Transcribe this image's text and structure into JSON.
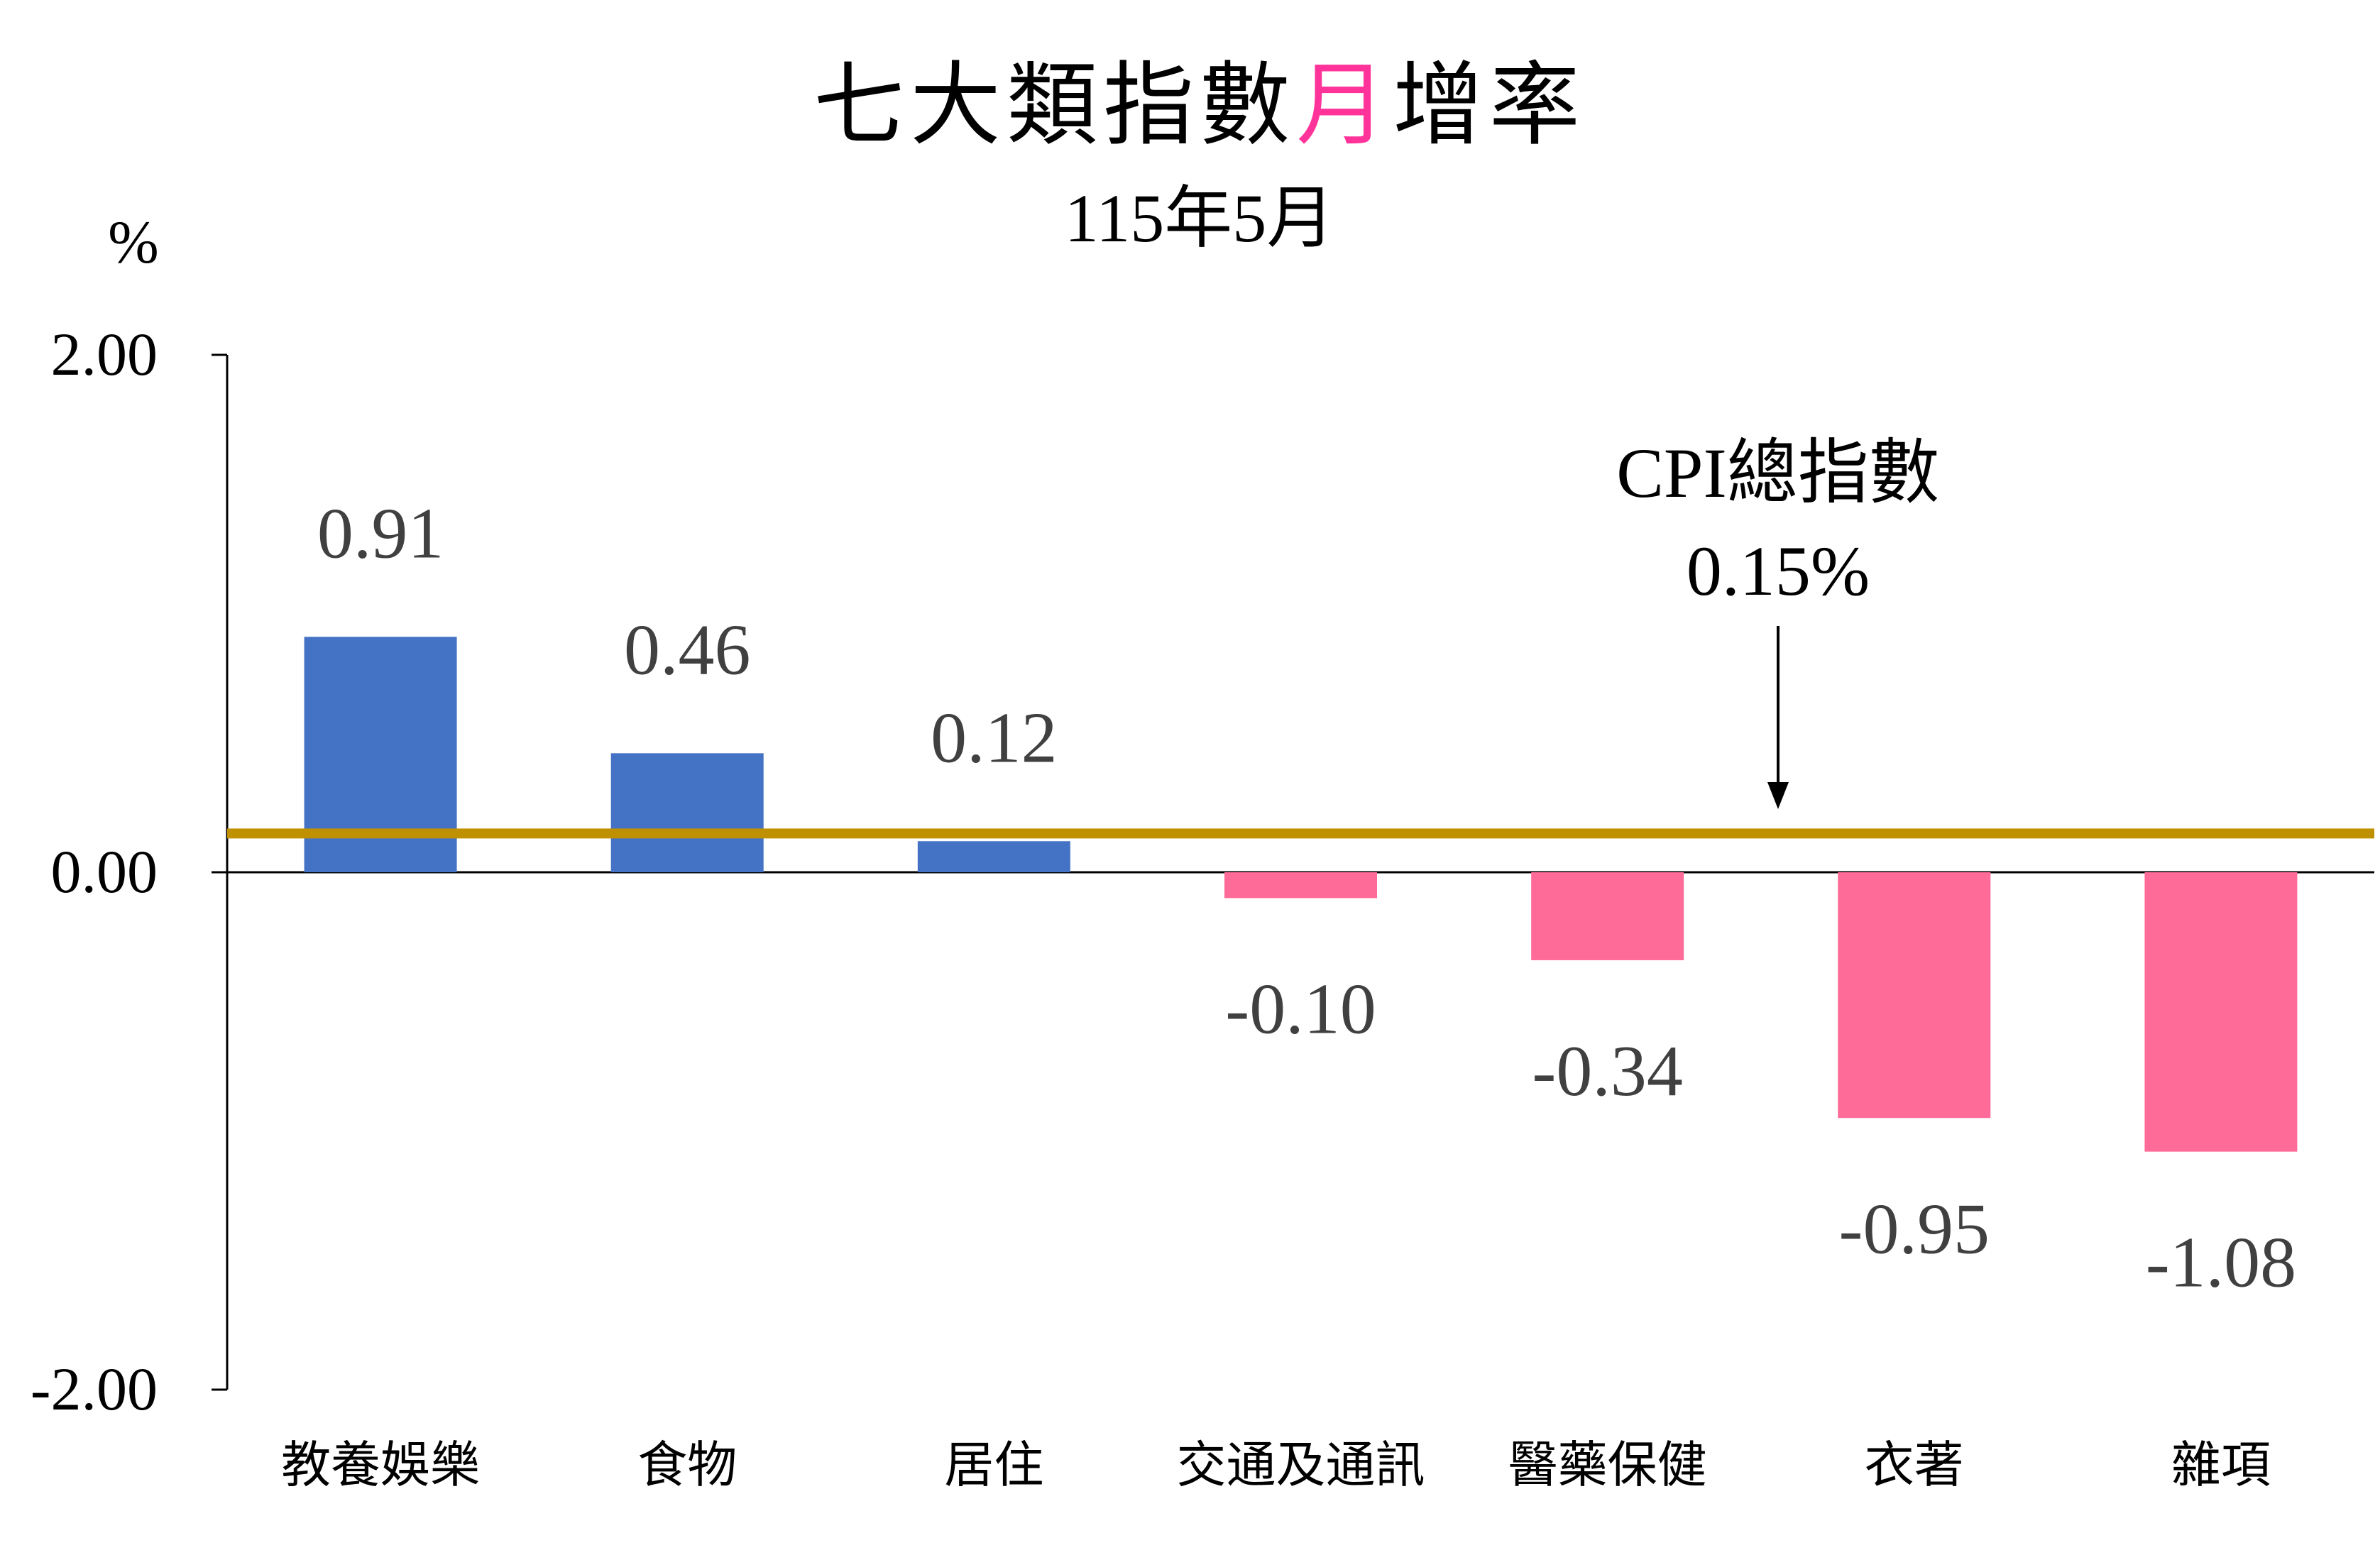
{
  "chart_data": {
    "type": "bar",
    "title": {
      "before": "七大類指數",
      "highlight": "月",
      "after": "增率",
      "highlight_color": "#ff3399"
    },
    "subtitle": "115年5月",
    "unit_label": "%",
    "categories": [
      "教養娛樂",
      "食物",
      "居住",
      "交通及通訊",
      "醫藥保健",
      "衣著",
      "雜項"
    ],
    "values": [
      0.91,
      0.46,
      0.12,
      -0.1,
      -0.34,
      -0.95,
      -1.08
    ],
    "value_labels": [
      "0.91",
      "0.46",
      "0.12",
      "-0.10",
      "-0.34",
      "-0.95",
      "-1.08"
    ],
    "ylim": [
      -2.0,
      2.0
    ],
    "yticks": [
      {
        "value": 2.0,
        "label": "2.00"
      },
      {
        "value": 0.0,
        "label": "0.00"
      },
      {
        "value": -2.0,
        "label": "-2.00"
      }
    ],
    "colors": {
      "positive": "#4472c4",
      "negative": "#ff6b99",
      "reference_line": "#bf9000",
      "data_label": "#404040"
    },
    "reference_line": {
      "value": 0.15,
      "label_line1": "CPI總指數",
      "label_line2": "0.15%"
    },
    "grid": false,
    "legend": "none"
  }
}
